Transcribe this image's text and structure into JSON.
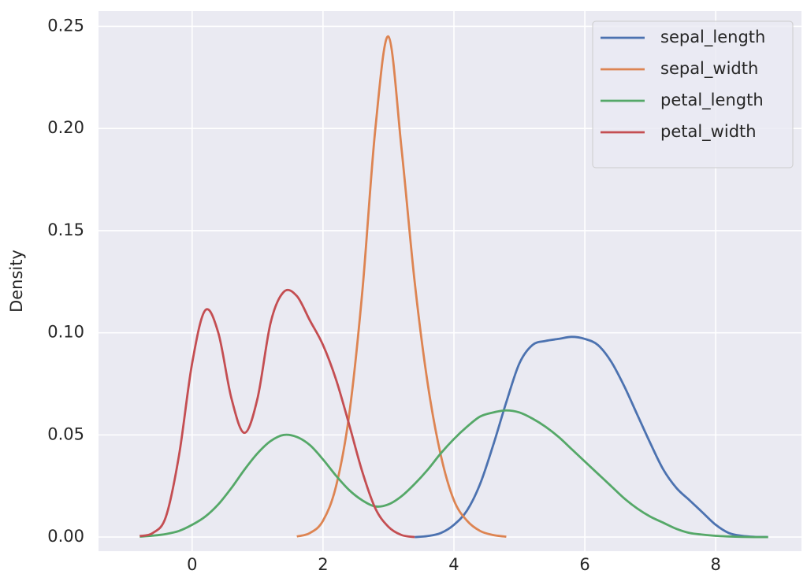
{
  "chart_data": {
    "type": "line",
    "ylabel": "Density",
    "x": [
      -1.0,
      -0.8,
      -0.6,
      -0.4,
      -0.2,
      0.0,
      0.2,
      0.4,
      0.6,
      0.8,
      1.0,
      1.2,
      1.4,
      1.6,
      1.8,
      2.0,
      2.2,
      2.4,
      2.6,
      2.8,
      3.0,
      3.2,
      3.4,
      3.6,
      3.8,
      4.0,
      4.2,
      4.4,
      4.6,
      4.8,
      5.0,
      5.2,
      5.4,
      5.6,
      5.8,
      6.0,
      6.2,
      6.4,
      6.6,
      6.8,
      7.0,
      7.2,
      7.4,
      7.6,
      7.8,
      8.0,
      8.2,
      8.4,
      8.6,
      8.8
    ],
    "series": [
      {
        "name": "sepal_length",
        "color": "#4c72b0",
        "values": [
          null,
          null,
          null,
          null,
          null,
          null,
          null,
          null,
          null,
          null,
          null,
          null,
          null,
          null,
          null,
          null,
          null,
          null,
          null,
          null,
          null,
          null,
          0.0,
          0.0005,
          0.002,
          0.006,
          0.013,
          0.026,
          0.045,
          0.066,
          0.085,
          0.094,
          0.096,
          0.097,
          0.098,
          0.097,
          0.094,
          0.086,
          0.074,
          0.06,
          0.046,
          0.033,
          0.024,
          0.018,
          0.012,
          0.006,
          0.002,
          0.0006,
          0.0001,
          0.0
        ]
      },
      {
        "name": "sepal_width",
        "color": "#dd8452",
        "values": [
          null,
          null,
          null,
          null,
          null,
          null,
          null,
          null,
          null,
          null,
          null,
          null,
          null,
          0.0003,
          0.002,
          0.008,
          0.025,
          0.06,
          0.12,
          0.2,
          0.245,
          0.19,
          0.125,
          0.075,
          0.04,
          0.018,
          0.008,
          0.003,
          0.001,
          0.0002,
          null,
          null,
          null,
          null,
          null,
          null,
          null,
          null,
          null,
          null,
          null,
          null,
          null,
          null,
          null,
          null,
          null,
          null,
          null,
          null
        ]
      },
      {
        "name": "petal_length",
        "color": "#55a868",
        "values": [
          null,
          0.0002,
          0.0007,
          0.0015,
          0.003,
          0.006,
          0.01,
          0.016,
          0.024,
          0.033,
          0.041,
          0.047,
          0.05,
          0.049,
          0.045,
          0.038,
          0.03,
          0.023,
          0.018,
          0.015,
          0.016,
          0.02,
          0.026,
          0.033,
          0.041,
          0.048,
          0.054,
          0.059,
          0.061,
          0.062,
          0.061,
          0.058,
          0.054,
          0.049,
          0.043,
          0.037,
          0.031,
          0.025,
          0.019,
          0.014,
          0.01,
          0.007,
          0.004,
          0.002,
          0.0012,
          0.0006,
          0.0003,
          0.0001,
          0.0,
          0.0
        ]
      },
      {
        "name": "petal_width",
        "color": "#c44e52",
        "values": [
          null,
          0.0005,
          0.002,
          0.01,
          0.04,
          0.085,
          0.111,
          0.1,
          0.068,
          0.051,
          0.068,
          0.105,
          0.12,
          0.118,
          0.106,
          0.094,
          0.077,
          0.055,
          0.032,
          0.014,
          0.005,
          0.001,
          0.0,
          null,
          null,
          null,
          null,
          null,
          null,
          null,
          null,
          null,
          null,
          null,
          null,
          null,
          null,
          null,
          null,
          null,
          null,
          null,
          null,
          null,
          null,
          null,
          null,
          null,
          null,
          null
        ]
      }
    ],
    "xlim": [
      -1.43,
      9.31
    ],
    "ylim": [
      -0.0069,
      0.2575
    ],
    "xticks": [
      0,
      2,
      4,
      6,
      8
    ],
    "yticks": [
      {
        "value": 0,
        "label": "0.00"
      },
      {
        "value": 0.05,
        "label": "0.05"
      },
      {
        "value": 0.1,
        "label": "0.10"
      },
      {
        "value": 0.15,
        "label": "0.15"
      },
      {
        "value": 0.2,
        "label": "0.20"
      },
      {
        "value": 0.25,
        "label": "0.25"
      }
    ],
    "grid": true,
    "legend": "upper right",
    "background": "#eaeaf2"
  }
}
